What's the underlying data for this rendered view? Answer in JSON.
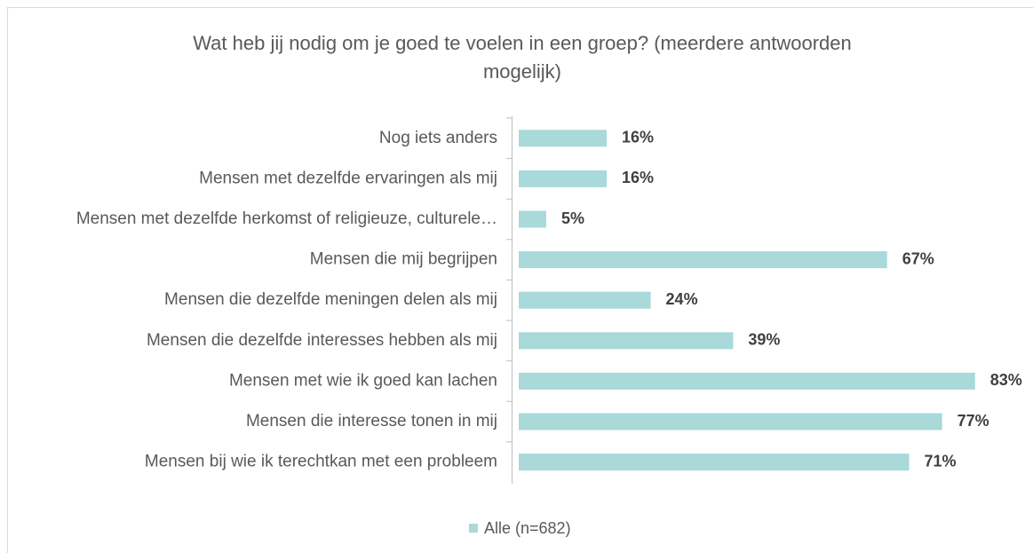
{
  "chart_data": {
    "type": "hbar",
    "title": "Wat heb jij nodig om je goed te voelen in een groep? (meerdere antwoorden mogelijk)",
    "categories": [
      "Nog iets anders",
      "Mensen met dezelfde ervaringen als mij",
      "Mensen met dezelfde herkomst of religieuze, culturele…",
      "Mensen die mij begrijpen",
      "Mensen die dezelfde meningen delen als mij",
      "Mensen die dezelfde interesses hebben als mij",
      "Mensen met wie ik goed kan lachen",
      "Mensen die interesse tonen in mij",
      "Mensen bij wie ik terechtkan met een probleem"
    ],
    "series": [
      {
        "name": "Alle (n=682)",
        "color": "#a9d9d8",
        "values": [
          16,
          16,
          5,
          67,
          24,
          39,
          83,
          77,
          71
        ],
        "value_labels": [
          "16%",
          "16%",
          "5%",
          "67%",
          "24%",
          "39%",
          "83%",
          "77%",
          "71%"
        ]
      }
    ],
    "legend": "bottom"
  }
}
